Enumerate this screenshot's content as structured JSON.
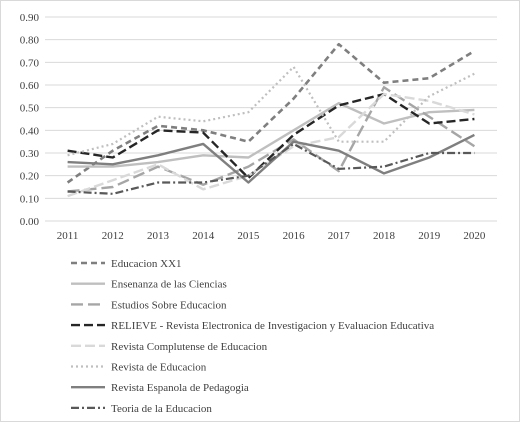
{
  "chart_data": {
    "type": "line",
    "title": "",
    "xlabel": "",
    "ylabel": "",
    "x": [
      "2011",
      "2012",
      "2013",
      "2014",
      "2015",
      "2016",
      "2017",
      "2018",
      "2019",
      "2020"
    ],
    "y_ticks": [
      "0.00",
      "0.10",
      "0.20",
      "0.30",
      "0.40",
      "0.50",
      "0.60",
      "0.70",
      "0.80",
      "0.90"
    ],
    "ylim": [
      0,
      0.9
    ],
    "grid": true,
    "legend_position": "bottom",
    "series": [
      {
        "name": "Educacion XX1",
        "values": [
          0.17,
          0.31,
          0.42,
          0.4,
          0.35,
          0.54,
          0.78,
          0.61,
          0.63,
          0.75
        ],
        "color": "#7f7f7f",
        "dash": "6,4",
        "width": 2.6
      },
      {
        "name": "Ensenanza de las Ciencias",
        "values": [
          0.24,
          0.24,
          0.26,
          0.29,
          0.28,
          0.4,
          0.52,
          0.43,
          0.48,
          0.49
        ],
        "color": "#bfbfbf",
        "dash": "",
        "width": 2.4
      },
      {
        "name": "Estudios Sobre Educacion",
        "values": [
          0.13,
          0.15,
          0.24,
          0.16,
          0.24,
          0.36,
          0.22,
          0.59,
          0.46,
          0.33
        ],
        "color": "#a6a6a6",
        "dash": "12,5",
        "width": 2.4
      },
      {
        "name": "RELIEVE - Revista Electronica de Investigacion y Evaluacion Educativa",
        "values": [
          0.31,
          0.28,
          0.4,
          0.39,
          0.19,
          0.38,
          0.51,
          0.56,
          0.43,
          0.45
        ],
        "color": "#262626",
        "dash": "9,4",
        "width": 2.4
      },
      {
        "name": "Revista Complutense de Educacion",
        "values": [
          0.11,
          0.18,
          0.25,
          0.14,
          0.2,
          0.33,
          0.37,
          0.56,
          0.53,
          0.47
        ],
        "color": "#d9d9d9",
        "dash": "10,4",
        "width": 2.4
      },
      {
        "name": "Revista de Educacion",
        "values": [
          0.29,
          0.34,
          0.46,
          0.44,
          0.48,
          0.68,
          0.35,
          0.35,
          0.55,
          0.65
        ],
        "color": "#bfbfbf",
        "dash": "2,3",
        "width": 2.2
      },
      {
        "name": "Revista Espanola de Pedagogia",
        "values": [
          0.26,
          0.25,
          0.29,
          0.34,
          0.17,
          0.35,
          0.31,
          0.21,
          0.28,
          0.38
        ],
        "color": "#7f7f7f",
        "dash": "",
        "width": 2.4
      },
      {
        "name": "Teoria de la Educacion",
        "values": [
          0.13,
          0.12,
          0.17,
          0.17,
          0.2,
          0.34,
          0.23,
          0.24,
          0.3,
          0.3
        ],
        "color": "#595959",
        "dash": "8,3,2,3",
        "width": 2.2
      }
    ]
  }
}
